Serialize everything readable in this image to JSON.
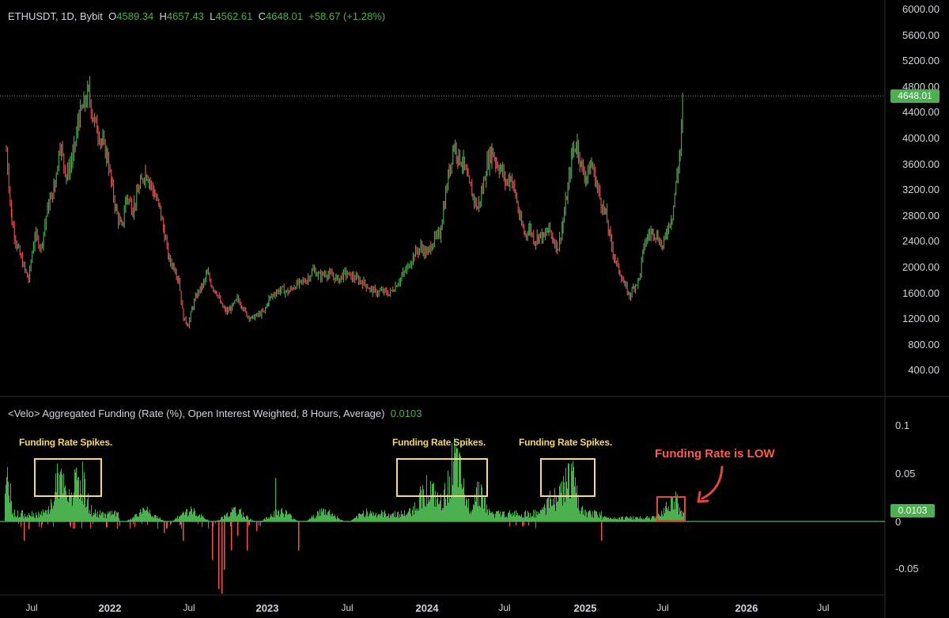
{
  "header": {
    "symbol": "ETHUSDT, 1D, Bybit",
    "o_label": "O",
    "o_value": "4589.34",
    "h_label": "H",
    "h_value": "4657.43",
    "l_label": "L",
    "l_value": "4562.61",
    "c_label": "C",
    "c_value": "4648.01",
    "change": "+58.67 (+1.28%)"
  },
  "indicator": {
    "title": "<Velo> Aggregated Funding (Rate (%), Open Interest Weighted, 8 Hours, Average)",
    "value": "0.0103"
  },
  "price_axis": {
    "ticks": [
      "6000.00",
      "5600.00",
      "5200.00",
      "4800.00",
      "4400.00",
      "4000.00",
      "3600.00",
      "3200.00",
      "2800.00",
      "2400.00",
      "2000.00",
      "1600.00",
      "1200.00",
      "800.00",
      "400.00"
    ],
    "last_price_tag": "4648.01"
  },
  "funding_axis": {
    "ticks": [
      "0.1",
      "0.05",
      "0",
      "-0.05"
    ],
    "last_value_tag": "0.0103"
  },
  "time_axis": {
    "labels": [
      {
        "text": "Jul",
        "year": false
      },
      {
        "text": "2022",
        "year": true
      },
      {
        "text": "Jul",
        "year": false
      },
      {
        "text": "2023",
        "year": true
      },
      {
        "text": "Jul",
        "year": false
      },
      {
        "text": "2024",
        "year": true
      },
      {
        "text": "Jul",
        "year": false
      },
      {
        "text": "2025",
        "year": true
      },
      {
        "text": "Jul",
        "year": false
      },
      {
        "text": "2026",
        "year": true
      },
      {
        "text": "Jul",
        "year": false
      }
    ]
  },
  "annotations": {
    "spike1": "Funding Rate Spikes.",
    "spike2": "Funding Rate Spikes.",
    "spike3": "Funding Rate Spikes.",
    "low": "Funding Rate is LOW"
  },
  "colors": {
    "up": "#4caf50",
    "down": "#ef5350",
    "highlight_box": "#f5d98a",
    "low_box": "#e0473e"
  }
}
